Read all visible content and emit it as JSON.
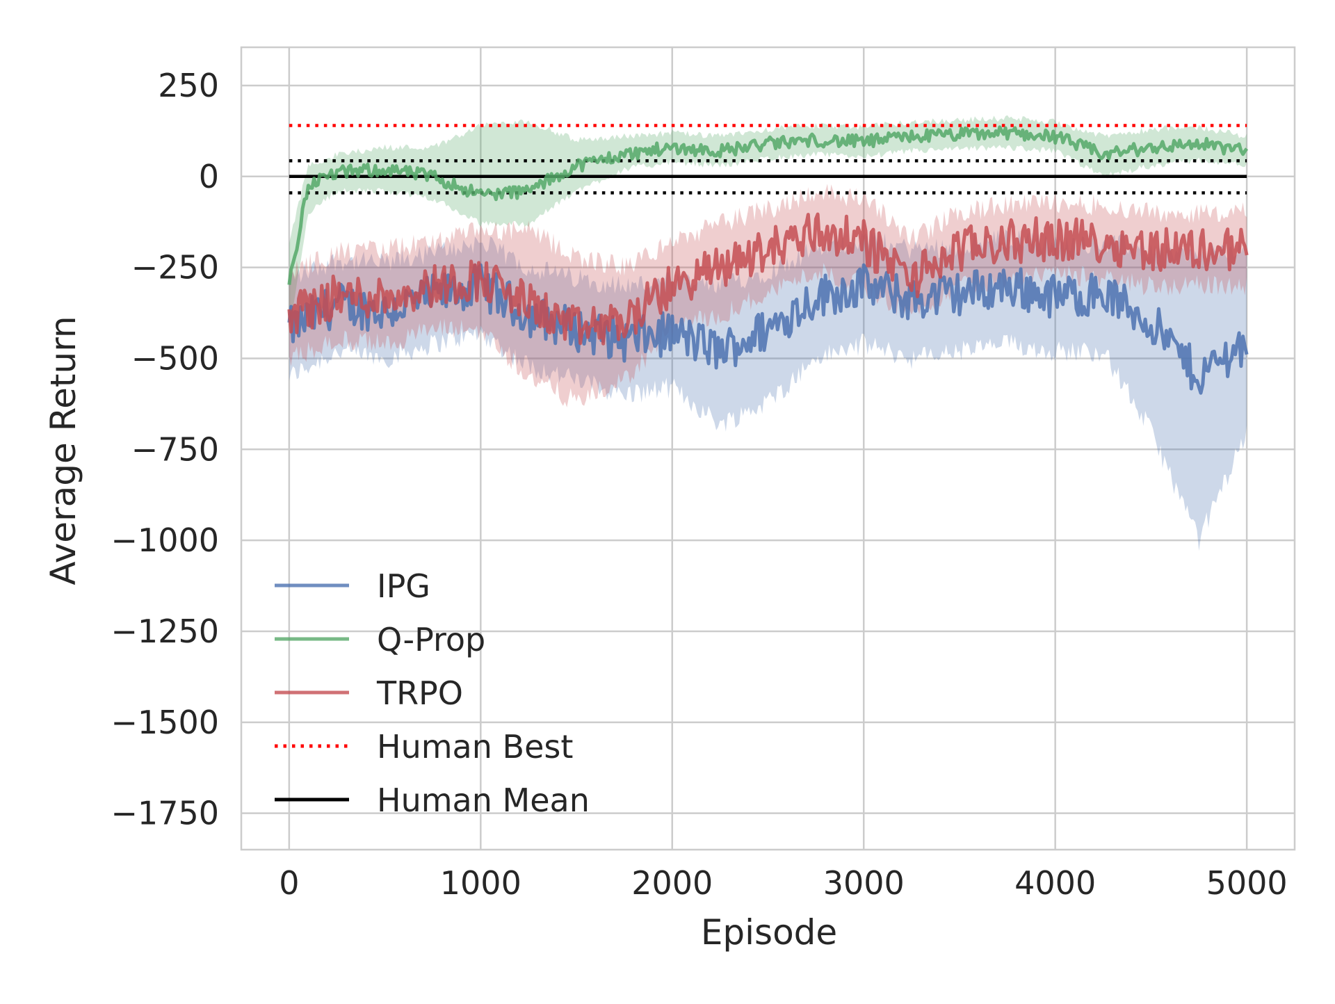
{
  "chart_data": {
    "type": "line",
    "title": "",
    "xlabel": "Episode",
    "ylabel": "Average Return",
    "xlim": [
      -250,
      5250
    ],
    "ylim": [
      -1850,
      355
    ],
    "xticks": [
      0,
      1000,
      2000,
      3000,
      4000,
      5000
    ],
    "xtick_labels": [
      "0",
      "1000",
      "2000",
      "3000",
      "4000",
      "5000"
    ],
    "yticks": [
      250,
      0,
      -250,
      -500,
      -750,
      -1000,
      -1250,
      -1500,
      -1750
    ],
    "ytick_labels": [
      "250",
      "0",
      "−250",
      "−500",
      "−750",
      "−1000",
      "−1250",
      "−1500",
      "−1750"
    ],
    "grid": true,
    "legend_position": "lower-left",
    "series": [
      {
        "name": "IPG",
        "color": "#4c72b0",
        "x": [
          0,
          250,
          500,
          750,
          1000,
          1250,
          1500,
          1750,
          2000,
          2250,
          2500,
          2750,
          3000,
          3250,
          3500,
          3750,
          4000,
          4250,
          4500,
          4750,
          5000
        ],
        "y": [
          -420,
          -350,
          -370,
          -330,
          -300,
          -380,
          -420,
          -450,
          -430,
          -480,
          -420,
          -330,
          -300,
          -340,
          -320,
          -300,
          -330,
          -320,
          -400,
          -550,
          -450
        ],
        "band_low": [
          -550,
          -480,
          -500,
          -460,
          -430,
          -520,
          -560,
          -600,
          -580,
          -680,
          -620,
          -500,
          -460,
          -500,
          -480,
          -460,
          -480,
          -480,
          -700,
          -1000,
          -700
        ],
        "band_high": [
          -280,
          -230,
          -240,
          -210,
          -180,
          -250,
          -280,
          -300,
          -290,
          -300,
          -260,
          -200,
          -170,
          -200,
          -190,
          -170,
          -190,
          -180,
          -200,
          -220,
          -200
        ]
      },
      {
        "name": "Q-Prop",
        "color": "#55a868",
        "x": [
          0,
          100,
          250,
          500,
          750,
          1000,
          1250,
          1500,
          1750,
          2000,
          2250,
          2500,
          2750,
          3000,
          3250,
          3500,
          3750,
          4000,
          4250,
          4500,
          4750,
          5000
        ],
        "y": [
          -300,
          -20,
          10,
          20,
          0,
          -50,
          -40,
          30,
          60,
          80,
          70,
          90,
          100,
          95,
          110,
          115,
          120,
          110,
          60,
          80,
          90,
          70
        ],
        "band_low": [
          -420,
          -100,
          -40,
          -40,
          -60,
          -130,
          -130,
          -40,
          20,
          40,
          30,
          50,
          60,
          55,
          70,
          75,
          80,
          70,
          0,
          30,
          45,
          30
        ],
        "band_high": [
          -180,
          30,
          60,
          80,
          80,
          140,
          150,
          100,
          110,
          120,
          110,
          130,
          140,
          135,
          150,
          155,
          160,
          150,
          110,
          130,
          135,
          110
        ]
      },
      {
        "name": "TRPO",
        "color": "#c44e52",
        "x": [
          0,
          250,
          500,
          750,
          1000,
          1250,
          1500,
          1750,
          2000,
          2250,
          2500,
          2750,
          3000,
          3250,
          3500,
          3750,
          4000,
          4250,
          4500,
          4750,
          5000
        ],
        "y": [
          -380,
          -330,
          -330,
          -300,
          -280,
          -350,
          -420,
          -400,
          -300,
          -250,
          -200,
          -150,
          -180,
          -280,
          -200,
          -180,
          -170,
          -180,
          -200,
          -200,
          -200
        ],
        "band_low": [
          -500,
          -450,
          -460,
          -420,
          -420,
          -550,
          -620,
          -560,
          -420,
          -380,
          -320,
          -260,
          -300,
          -380,
          -300,
          -280,
          -270,
          -280,
          -300,
          -300,
          -300
        ],
        "band_high": [
          -260,
          -210,
          -200,
          -180,
          -150,
          -150,
          -220,
          -250,
          -180,
          -130,
          -90,
          -40,
          -60,
          -170,
          -100,
          -80,
          -70,
          -80,
          -100,
          -100,
          -100
        ]
      }
    ],
    "reference_lines": [
      {
        "name": "Human Best",
        "y": 140,
        "x_range": [
          0,
          5000
        ],
        "color": "#ff0000",
        "style": "dotted"
      },
      {
        "name": "Human Mean",
        "y": 0,
        "x_range": [
          0,
          5000
        ],
        "color": "#000000",
        "style": "solid"
      },
      {
        "name": "",
        "y": 43,
        "x_range": [
          0,
          5000
        ],
        "color": "#000000",
        "style": "dotted"
      },
      {
        "name": "",
        "y": -45,
        "x_range": [
          0,
          5000
        ],
        "color": "#000000",
        "style": "dotted"
      }
    ],
    "legend": [
      "IPG",
      "Q-Prop",
      "TRPO",
      "Human Best",
      "Human Mean"
    ]
  }
}
